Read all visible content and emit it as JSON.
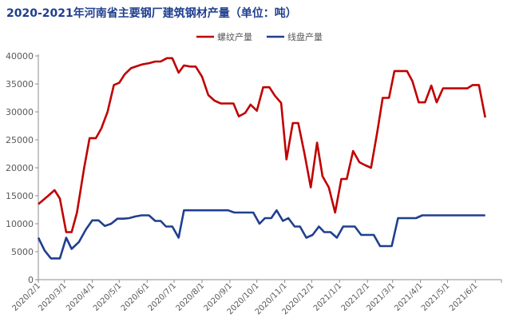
{
  "chart_data": {
    "type": "line",
    "title": "2020-2021年河南省主要钢厂建筑钢材产量（单位：吨）",
    "xlabel": "",
    "ylabel": "",
    "ylim": [
      0,
      40000
    ],
    "y_ticks": [
      0,
      5000,
      10000,
      15000,
      20000,
      25000,
      30000,
      35000,
      40000
    ],
    "x_range": [
      "2020-02-01",
      "2021-06-30"
    ],
    "x_tick_labels": [
      "2020/2/1",
      "2020/3/1",
      "2020/4/1",
      "2020/5/1",
      "2020/6/1",
      "2020/7/1",
      "2020/8/1",
      "2020/9/1",
      "2020/10/1",
      "2020/11/1",
      "2020/12/1",
      "2021/1/1",
      "2021/2/1",
      "2021/3/1",
      "2021/4/1",
      "2021/5/1",
      "2021/6/1"
    ],
    "legend_position": "top-center",
    "grid": false,
    "series": [
      {
        "name": "螺纹产量",
        "color": "#c00000",
        "points": [
          [
            "2020-02-01",
            13500
          ],
          [
            "2020-02-12",
            15000
          ],
          [
            "2020-02-19",
            16000
          ],
          [
            "2020-02-25",
            14500
          ],
          [
            "2020-03-03",
            8500
          ],
          [
            "2020-03-09",
            8500
          ],
          [
            "2020-03-15",
            12000
          ],
          [
            "2020-03-23",
            20000
          ],
          [
            "2020-03-29",
            25300
          ],
          [
            "2020-04-05",
            25300
          ],
          [
            "2020-04-11",
            27000
          ],
          [
            "2020-04-18",
            30000
          ],
          [
            "2020-04-25",
            34800
          ],
          [
            "2020-05-01",
            35200
          ],
          [
            "2020-05-07",
            36700
          ],
          [
            "2020-05-14",
            37800
          ],
          [
            "2020-05-21",
            38200
          ],
          [
            "2020-05-27",
            38500
          ],
          [
            "2020-06-03",
            38700
          ],
          [
            "2020-06-10",
            39000
          ],
          [
            "2020-06-16",
            39000
          ],
          [
            "2020-06-23",
            39600
          ],
          [
            "2020-06-29",
            39600
          ],
          [
            "2020-07-06",
            37000
          ],
          [
            "2020-07-12",
            38300
          ],
          [
            "2020-07-19",
            38100
          ],
          [
            "2020-07-25",
            38100
          ],
          [
            "2020-08-01",
            36300
          ],
          [
            "2020-08-08",
            33000
          ],
          [
            "2020-08-15",
            32000
          ],
          [
            "2020-08-22",
            31500
          ],
          [
            "2020-08-29",
            31500
          ],
          [
            "2020-09-05",
            31500
          ],
          [
            "2020-09-11",
            29200
          ],
          [
            "2020-09-18",
            29800
          ],
          [
            "2020-09-24",
            31300
          ],
          [
            "2020-10-01",
            30200
          ],
          [
            "2020-10-08",
            34400
          ],
          [
            "2020-10-15",
            34400
          ],
          [
            "2020-10-21",
            32900
          ],
          [
            "2020-10-28",
            31600
          ],
          [
            "2020-11-03",
            21500
          ],
          [
            "2020-11-10",
            28000
          ],
          [
            "2020-11-16",
            28000
          ],
          [
            "2020-11-23",
            22500
          ],
          [
            "2020-11-30",
            16500
          ],
          [
            "2020-12-07",
            24500
          ],
          [
            "2020-12-13",
            18500
          ],
          [
            "2020-12-20",
            16500
          ],
          [
            "2020-12-27",
            12000
          ],
          [
            "2021-01-03",
            18000
          ],
          [
            "2021-01-09",
            18000
          ],
          [
            "2021-01-16",
            23000
          ],
          [
            "2021-01-23",
            21000
          ],
          [
            "2021-01-29",
            20500
          ],
          [
            "2021-02-05",
            20000
          ],
          [
            "2021-02-12",
            26500
          ],
          [
            "2021-02-18",
            32500
          ],
          [
            "2021-02-25",
            32500
          ],
          [
            "2021-03-03",
            37300
          ],
          [
            "2021-03-10",
            37300
          ],
          [
            "2021-03-17",
            37300
          ],
          [
            "2021-03-23",
            35500
          ],
          [
            "2021-03-30",
            31700
          ],
          [
            "2021-04-06",
            31700
          ],
          [
            "2021-04-13",
            34700
          ],
          [
            "2021-04-19",
            31700
          ],
          [
            "2021-04-26",
            34200
          ],
          [
            "2021-05-03",
            34200
          ],
          [
            "2021-05-09",
            34200
          ],
          [
            "2021-05-16",
            34200
          ],
          [
            "2021-05-23",
            34200
          ],
          [
            "2021-05-29",
            34800
          ],
          [
            "2021-06-05",
            34800
          ],
          [
            "2021-06-12",
            29000
          ]
        ]
      },
      {
        "name": "线盘产量",
        "color": "#1f3f8f",
        "points": [
          [
            "2020-02-01",
            7500
          ],
          [
            "2020-02-08",
            5200
          ],
          [
            "2020-02-15",
            3800
          ],
          [
            "2020-02-25",
            3800
          ],
          [
            "2020-03-03",
            7500
          ],
          [
            "2020-03-09",
            5500
          ],
          [
            "2020-03-17",
            6700
          ],
          [
            "2020-03-25",
            9000
          ],
          [
            "2020-04-01",
            10600
          ],
          [
            "2020-04-08",
            10600
          ],
          [
            "2020-04-15",
            9600
          ],
          [
            "2020-04-22",
            10000
          ],
          [
            "2020-04-29",
            10900
          ],
          [
            "2020-05-06",
            10900
          ],
          [
            "2020-05-12",
            11000
          ],
          [
            "2020-05-19",
            11300
          ],
          [
            "2020-05-26",
            11500
          ],
          [
            "2020-06-03",
            11500
          ],
          [
            "2020-06-10",
            10500
          ],
          [
            "2020-06-16",
            10500
          ],
          [
            "2020-06-22",
            9500
          ],
          [
            "2020-06-29",
            9500
          ],
          [
            "2020-07-06",
            7500
          ],
          [
            "2020-07-12",
            12400
          ],
          [
            "2020-07-19",
            12400
          ],
          [
            "2020-07-26",
            12400
          ],
          [
            "2020-08-02",
            12400
          ],
          [
            "2020-08-09",
            12400
          ],
          [
            "2020-08-16",
            12400
          ],
          [
            "2020-08-23",
            12400
          ],
          [
            "2020-08-30",
            12400
          ],
          [
            "2020-09-06",
            12000
          ],
          [
            "2020-09-13",
            12000
          ],
          [
            "2020-09-20",
            12000
          ],
          [
            "2020-09-27",
            12000
          ],
          [
            "2020-10-04",
            10000
          ],
          [
            "2020-10-10",
            11000
          ],
          [
            "2020-10-17",
            11000
          ],
          [
            "2020-10-23",
            12400
          ],
          [
            "2020-10-30",
            10500
          ],
          [
            "2020-11-05",
            11000
          ],
          [
            "2020-11-12",
            9500
          ],
          [
            "2020-11-18",
            9500
          ],
          [
            "2020-11-25",
            7500
          ],
          [
            "2020-12-02",
            8000
          ],
          [
            "2020-12-09",
            9500
          ],
          [
            "2020-12-15",
            8500
          ],
          [
            "2020-12-22",
            8500
          ],
          [
            "2020-12-29",
            7500
          ],
          [
            "2021-01-05",
            9500
          ],
          [
            "2021-01-11",
            9500
          ],
          [
            "2021-01-18",
            9500
          ],
          [
            "2021-01-25",
            8000
          ],
          [
            "2021-02-01",
            8000
          ],
          [
            "2021-02-08",
            8000
          ],
          [
            "2021-02-15",
            6000
          ],
          [
            "2021-02-21",
            6000
          ],
          [
            "2021-02-28",
            6000
          ],
          [
            "2021-03-07",
            11000
          ],
          [
            "2021-03-13",
            11000
          ],
          [
            "2021-03-20",
            11000
          ],
          [
            "2021-03-27",
            11000
          ],
          [
            "2021-04-03",
            11500
          ],
          [
            "2021-04-10",
            11500
          ],
          [
            "2021-04-17",
            11500
          ],
          [
            "2021-04-24",
            11500
          ],
          [
            "2021-05-01",
            11500
          ],
          [
            "2021-05-08",
            11500
          ],
          [
            "2021-05-15",
            11500
          ],
          [
            "2021-05-22",
            11500
          ],
          [
            "2021-05-29",
            11500
          ],
          [
            "2021-06-05",
            11500
          ],
          [
            "2021-06-12",
            11500
          ]
        ]
      }
    ]
  }
}
